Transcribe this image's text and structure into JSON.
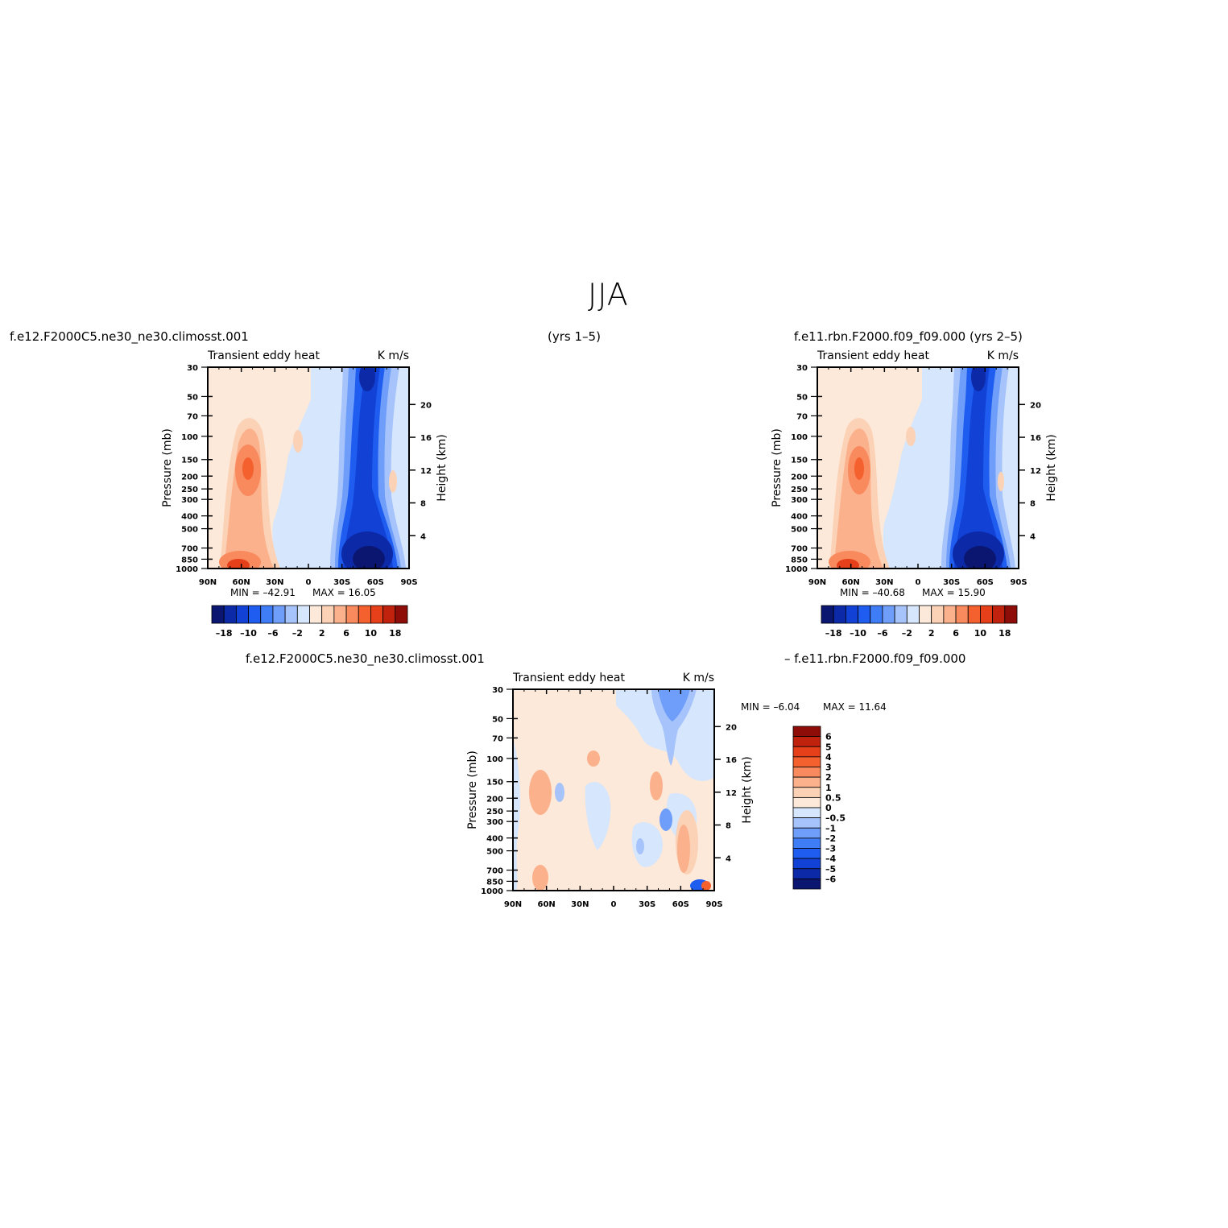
{
  "page": {
    "title": "JJA",
    "case1": "f.e12.F2000C5.ne30_ne30.climosst.001",
    "years1": "(yrs  1–5)",
    "case2": "f.e11.rbn.F2000.f09_f09.000  (yrs  2–5)",
    "diff_case1": "f.e12.F2000C5.ne30_ne30.climosst.001",
    "diff_case2": "–  f.e11.rbn.F2000.f09_f09.000"
  },
  "colors": {
    "main_scale": [
      "#0a1670",
      "#0c2aa8",
      "#1241d6",
      "#1f5cf0",
      "#3f7df7",
      "#6e9ef9",
      "#a6c4fb",
      "#d6e6fc",
      "#fde9d9",
      "#fcd2b6",
      "#fbb18c",
      "#f98a5e",
      "#f5602f",
      "#e6401a",
      "#c0220e",
      "#8e0d08"
    ],
    "diff_scale": [
      "#0a1670",
      "#0c2aa8",
      "#1241d6",
      "#1f5cf0",
      "#3f7df7",
      "#6e9ef9",
      "#a6c4fb",
      "#d6e6fc",
      "#fde9d9",
      "#fcd2b6",
      "#fbb18c",
      "#f98a5e",
      "#f5602f",
      "#e6401a",
      "#c0220e",
      "#8e0d08"
    ]
  },
  "chart_data": [
    {
      "type": "heatmap",
      "id": "panel1",
      "label_left": "Transient  eddy  heat",
      "label_right": "K  m/s",
      "ylabel": "Pressure  (mb)",
      "y2label": "Height  (km)",
      "x_ticks": [
        "90N",
        "60N",
        "30N",
        "0",
        "30S",
        "60S",
        "90S"
      ],
      "y_ticks": [
        "30",
        "50",
        "70",
        "100",
        "150",
        "200",
        "250",
        "300",
        "400",
        "500",
        "700",
        "850",
        "1000"
      ],
      "y2_ticks": [
        "20",
        "16",
        "12",
        "8",
        "4"
      ],
      "min_text": "MIN  =  –42.91",
      "max_text": "MAX  =    16.05",
      "colorbar_labels": [
        "–18",
        "–10",
        "–6",
        "–2",
        "2",
        "6",
        "10",
        "18"
      ]
    },
    {
      "type": "heatmap",
      "id": "panel2",
      "label_left": "Transient  eddy  heat",
      "label_right": "K  m/s",
      "ylabel": "Pressure  (mb)",
      "y2label": "Height  (km)",
      "x_ticks": [
        "90N",
        "60N",
        "30N",
        "0",
        "30S",
        "60S",
        "90S"
      ],
      "y_ticks": [
        "30",
        "50",
        "70",
        "100",
        "150",
        "200",
        "250",
        "300",
        "400",
        "500",
        "700",
        "850",
        "1000"
      ],
      "y2_ticks": [
        "20",
        "16",
        "12",
        "8",
        "4"
      ],
      "min_text": "MIN  =  –40.68",
      "max_text": "MAX  =    15.90",
      "colorbar_labels": [
        "–18",
        "–10",
        "–6",
        "–2",
        "2",
        "6",
        "10",
        "18"
      ]
    },
    {
      "type": "heatmap",
      "id": "panel3",
      "label_left": "Transient  eddy  heat",
      "label_right": "K  m/s",
      "ylabel": "Pressure  (mb)",
      "y2label": "Height  (km)",
      "x_ticks": [
        "90N",
        "60N",
        "30N",
        "0",
        "30S",
        "60S",
        "90S"
      ],
      "y_ticks": [
        "30",
        "50",
        "70",
        "100",
        "150",
        "200",
        "250",
        "300",
        "400",
        "500",
        "700",
        "850",
        "1000"
      ],
      "y2_ticks": [
        "20",
        "16",
        "12",
        "8",
        "4"
      ],
      "min_text": "MIN  =    –6.04",
      "max_text": "MAX  =    11.64",
      "colorbar_labels": [
        "6",
        "5",
        "4",
        "3",
        "2",
        "1",
        "0.5",
        "0",
        "–0.5",
        "–1",
        "–2",
        "–3",
        "–4",
        "–5",
        "–6"
      ]
    }
  ]
}
